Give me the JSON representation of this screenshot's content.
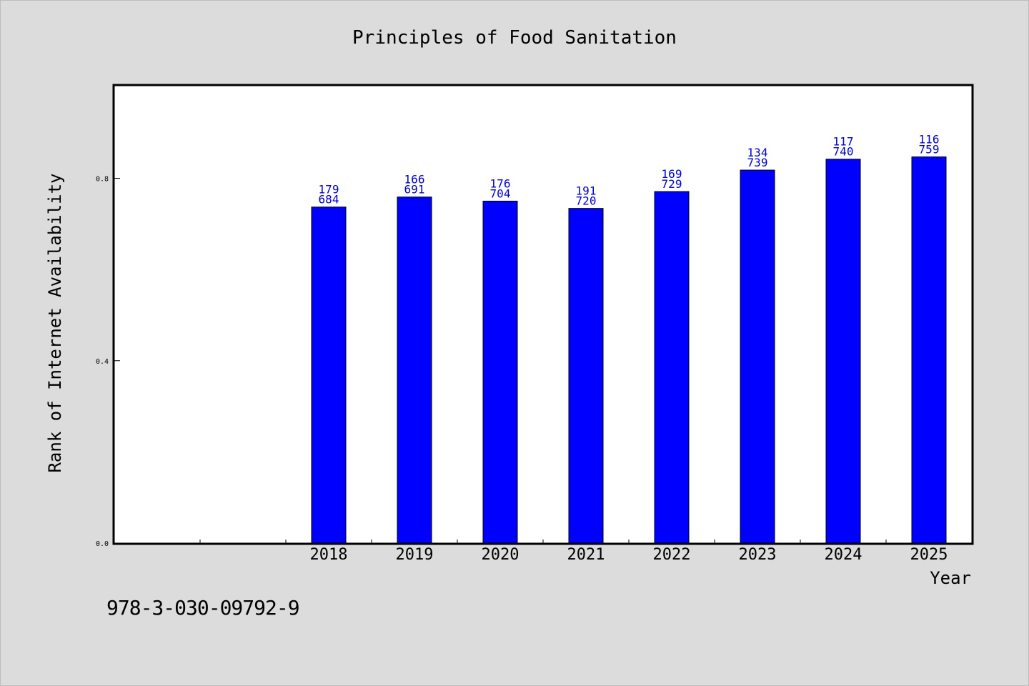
{
  "chart_data": {
    "type": "bar",
    "title": "Principles of Food Sanitation",
    "xlabel": "Year",
    "ylabel": "Rank of Internet Availability",
    "categories": [
      "2018",
      "2019",
      "2020",
      "2021",
      "2022",
      "2023",
      "2024",
      "2025"
    ],
    "values": [
      0.737,
      0.759,
      0.75,
      0.734,
      0.771,
      0.818,
      0.842,
      0.847
    ],
    "data_labels": [
      [
        "179",
        "684"
      ],
      [
        "166",
        "691"
      ],
      [
        "176",
        "704"
      ],
      [
        "191",
        "720"
      ],
      [
        "169",
        "729"
      ],
      [
        "134",
        "739"
      ],
      [
        "117",
        "740"
      ],
      [
        "116",
        "759"
      ]
    ],
    "yticks": [
      0.0,
      0.4,
      0.8
    ],
    "ytick_labels": [
      "0.0",
      "0.4",
      "0.8"
    ],
    "ylim": [
      0,
      1.0
    ],
    "grid": false,
    "bar_color": "#0000ff",
    "label_color": "#0000cc"
  },
  "footer": {
    "code": "978-3-030-09792-9"
  }
}
